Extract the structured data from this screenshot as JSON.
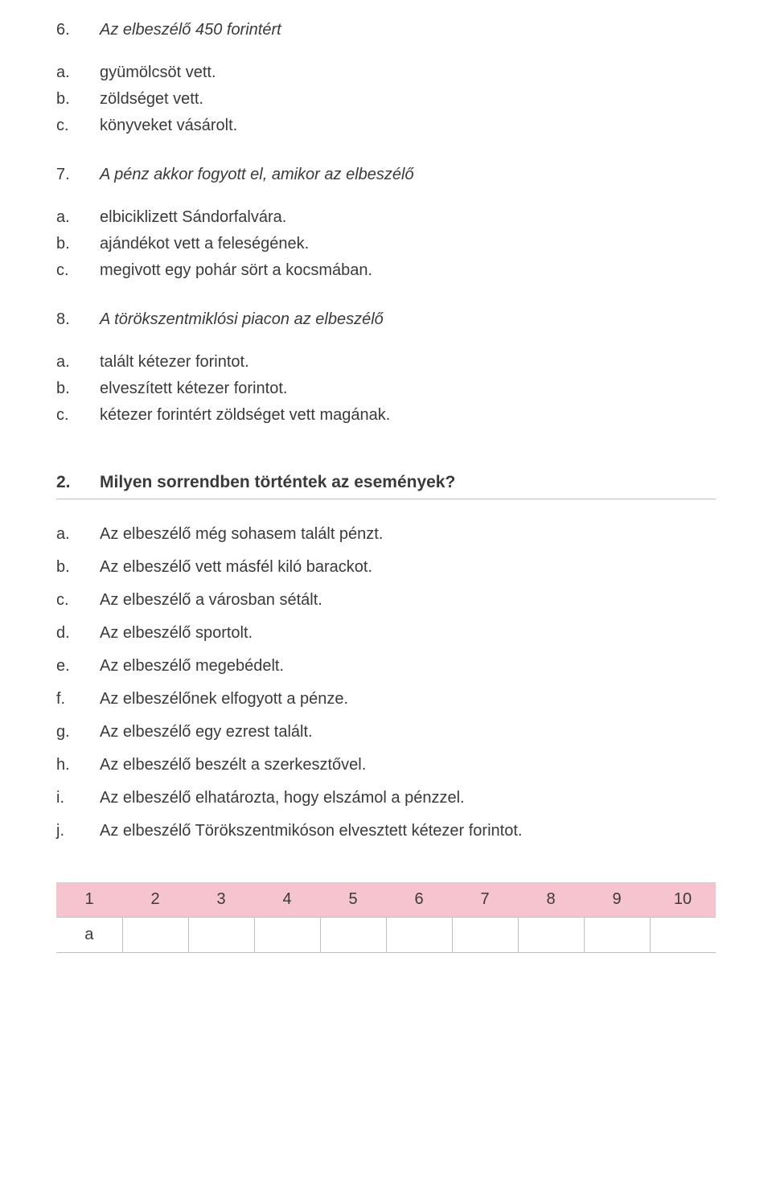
{
  "questions": [
    {
      "num": "6.",
      "text": "Az elbeszélő 450 forintért",
      "options": [
        {
          "letter": "a.",
          "text": "gyümölcsöt vett."
        },
        {
          "letter": "b.",
          "text": "zöldséget vett."
        },
        {
          "letter": "c.",
          "text": "könyveket vásárolt."
        }
      ]
    },
    {
      "num": "7.",
      "text": "A pénz akkor fogyott el, amikor az elbeszélő",
      "options": [
        {
          "letter": "a.",
          "text": "elbiciklizett Sándorfalvára."
        },
        {
          "letter": "b.",
          "text": "ajándékot vett a feleségének."
        },
        {
          "letter": "c.",
          "text": "megivott egy pohár sört a kocsmában."
        }
      ]
    },
    {
      "num": "8.",
      "text": "A törökszentmiklósi piacon az elbeszélő",
      "options": [
        {
          "letter": "a.",
          "text": "talált kétezer forintot."
        },
        {
          "letter": "b.",
          "text": "elveszített kétezer forintot."
        },
        {
          "letter": "c.",
          "text": "kétezer forintért zöldséget vett magának."
        }
      ]
    }
  ],
  "section": {
    "num": "2.",
    "title": "Milyen sorrendben történtek az események?"
  },
  "events": [
    {
      "letter": "a.",
      "text": "Az elbeszélő még sohasem talált pénzt."
    },
    {
      "letter": "b.",
      "text": "Az elbeszélő vett másfél kiló barackot."
    },
    {
      "letter": "c.",
      "text": "Az elbeszélő a városban sétált."
    },
    {
      "letter": "d.",
      "text": "Az elbeszélő sportolt."
    },
    {
      "letter": "e.",
      "text": "Az elbeszélő megebédelt."
    },
    {
      "letter": "f.",
      "text": "Az elbeszélőnek elfogyott a pénze."
    },
    {
      "letter": "g.",
      "text": "Az elbeszélő egy ezrest talált."
    },
    {
      "letter": "h.",
      "text": "Az elbeszélő beszélt a szerkesztővel."
    },
    {
      "letter": "i.",
      "text": "Az elbeszélő elhatározta, hogy elszámol a pénzzel."
    },
    {
      "letter": "j.",
      "text": "Az elbeszélő Törökszentmikóson elvesztett kétezer forintot."
    }
  ],
  "table": {
    "headers": [
      "1",
      "2",
      "3",
      "4",
      "5",
      "6",
      "7",
      "8",
      "9",
      "10"
    ],
    "row": [
      "a",
      "",
      "",
      "",
      "",
      "",
      "",
      "",
      "",
      ""
    ],
    "header_bg": "#f6c4ce",
    "border_color": "#bfbfbf"
  }
}
